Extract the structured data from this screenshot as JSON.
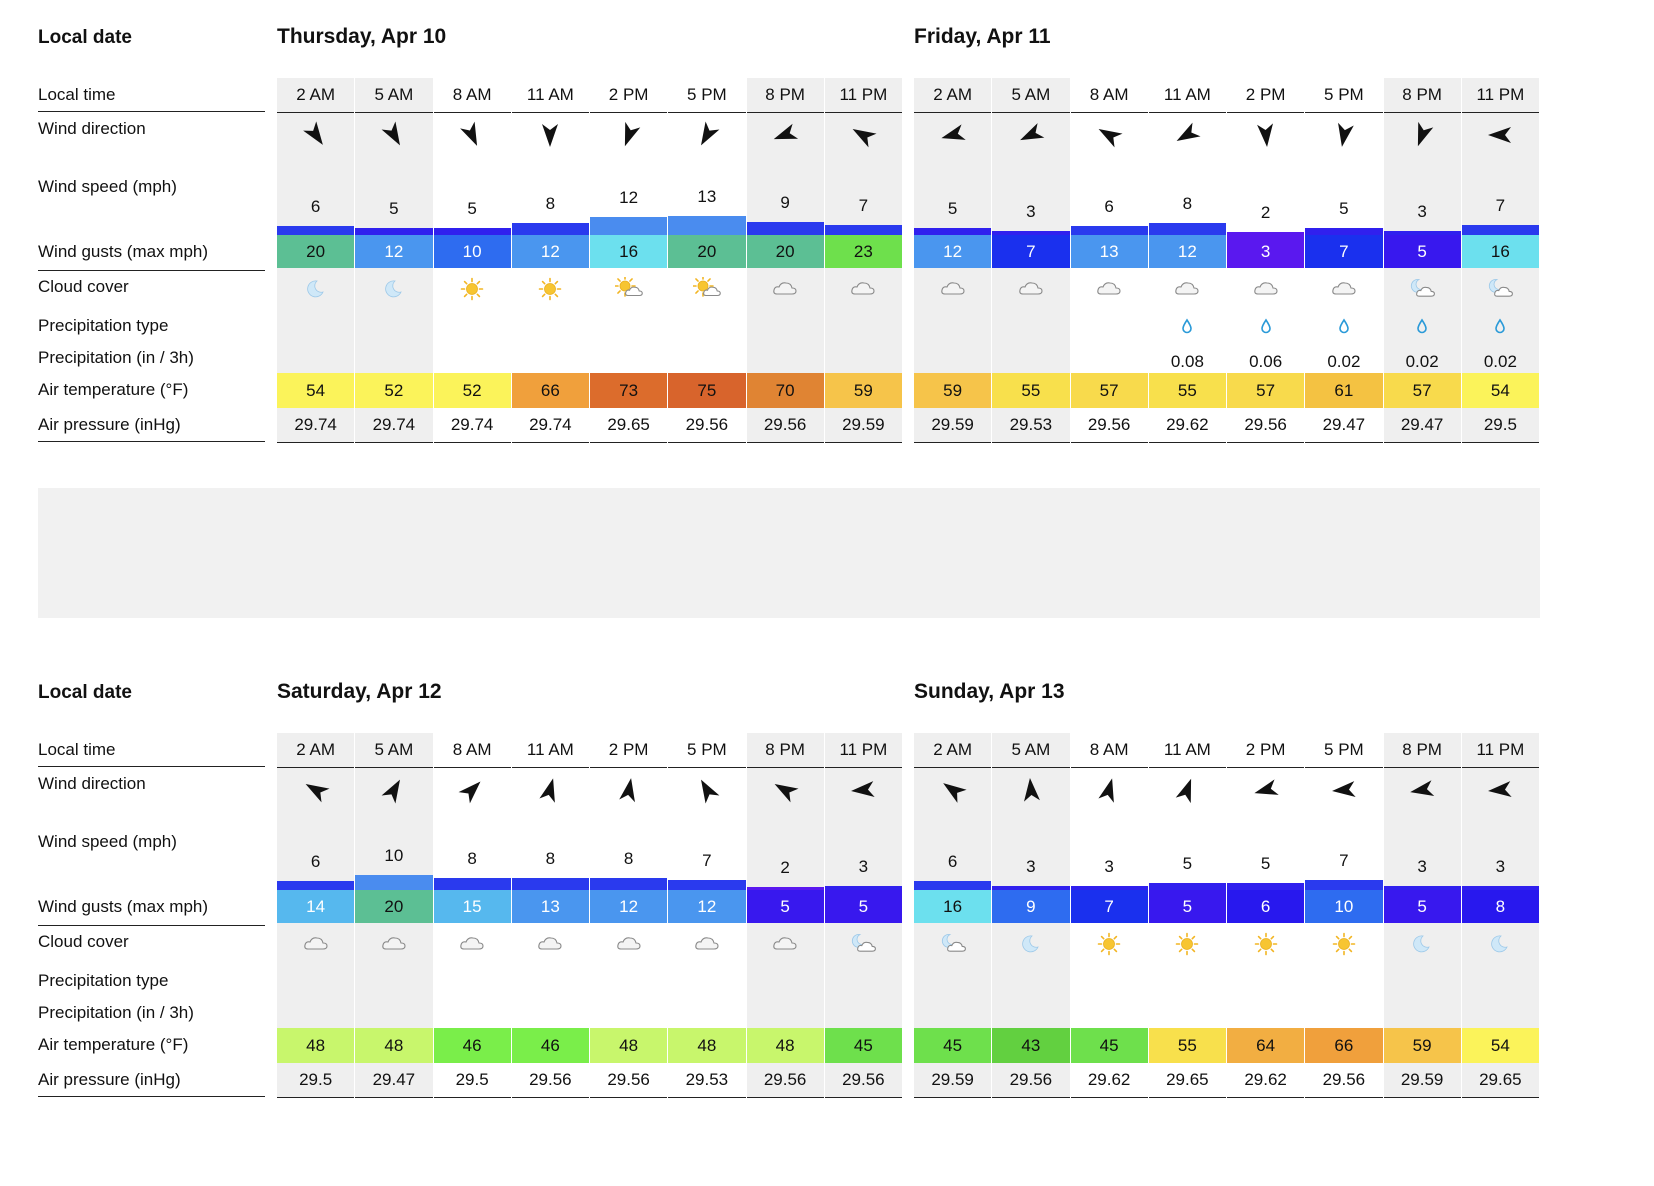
{
  "labels": {
    "local_date": "Local date",
    "local_time": "Local time",
    "wind_direction": "Wind direction",
    "wind_speed": "Wind speed (mph)",
    "wind_gusts": "Wind gusts (max mph)",
    "cloud_cover": "Cloud cover",
    "precip_type": "Precipitation type",
    "precip_amount": "Precipitation (in / 3h)",
    "air_temp": "Air temperature (°F)",
    "air_pressure": "Air pressure (inHg)"
  },
  "days": [
    {
      "title": "Thursday, Apr 10",
      "hours": [
        {
          "time": "2 AM",
          "dir": 145,
          "speed": "6",
          "gust": "20",
          "gust_color": "#5cbf94",
          "cloud": "moon",
          "precip": "",
          "temp": "54",
          "temp_color": "#fbf35a",
          "pressure": "29.74",
          "shade": true
        },
        {
          "time": "5 AM",
          "dir": 150,
          "speed": "5",
          "gust": "12",
          "gust_color": "#4a96ef",
          "cloud": "moon",
          "precip": "",
          "temp": "52",
          "temp_color": "#fbf35a",
          "pressure": "29.74",
          "shade": true
        },
        {
          "time": "8 AM",
          "dir": 155,
          "speed": "5",
          "gust": "10",
          "gust_color": "#2e6cf0",
          "cloud": "sun",
          "precip": "",
          "temp": "52",
          "temp_color": "#fbf35a",
          "pressure": "29.74",
          "shade": false
        },
        {
          "time": "11 AM",
          "dir": 180,
          "speed": "8",
          "gust": "12",
          "gust_color": "#4a96ef",
          "cloud": "sun",
          "precip": "",
          "temp": "66",
          "temp_color": "#f0a03c",
          "pressure": "29.74",
          "shade": false
        },
        {
          "time": "2 PM",
          "dir": 200,
          "speed": "12",
          "gust": "16",
          "gust_color": "#6ce0ee",
          "cloud": "sun-cloud",
          "precip": "",
          "temp": "73",
          "temp_color": "#dc6c2c",
          "pressure": "29.65",
          "shade": false
        },
        {
          "time": "5 PM",
          "dir": 210,
          "speed": "13",
          "gust": "20",
          "gust_color": "#5cbf94",
          "cloud": "sun-cloud",
          "precip": "",
          "temp": "75",
          "temp_color": "#d8642c",
          "pressure": "29.56",
          "shade": false
        },
        {
          "time": "8 PM",
          "dir": 250,
          "speed": "9",
          "gust": "20",
          "gust_color": "#5cbf94",
          "cloud": "cloud",
          "precip": "",
          "temp": "70",
          "temp_color": "#e08433",
          "pressure": "29.56",
          "shade": true
        },
        {
          "time": "11 PM",
          "dir": 300,
          "speed": "7",
          "gust": "23",
          "gust_color": "#6ee04c",
          "cloud": "cloud",
          "precip": "",
          "temp": "59",
          "temp_color": "#f6c44a",
          "pressure": "29.59",
          "shade": true
        }
      ]
    },
    {
      "title": "Friday, Apr 11",
      "hours": [
        {
          "time": "2 AM",
          "dir": 255,
          "speed": "5",
          "gust": "12",
          "gust_color": "#4a96ef",
          "cloud": "cloud",
          "precip": "",
          "temp": "59",
          "temp_color": "#f6c44a",
          "pressure": "29.59",
          "shade": true
        },
        {
          "time": "5 AM",
          "dir": 245,
          "speed": "3",
          "gust": "7",
          "gust_color": "#1a30ee",
          "cloud": "cloud",
          "precip": "",
          "temp": "55",
          "temp_color": "#f8e04c",
          "pressure": "29.53",
          "shade": true
        },
        {
          "time": "8 AM",
          "dir": 300,
          "speed": "6",
          "gust": "13",
          "gust_color": "#4a96ef",
          "cloud": "cloud",
          "precip": "",
          "temp": "57",
          "temp_color": "#f8da4c",
          "pressure": "29.56",
          "shade": false
        },
        {
          "time": "11 AM",
          "dir": 240,
          "speed": "8",
          "gust": "12",
          "gust_color": "#4a96ef",
          "cloud": "cloud",
          "precip": "0.08",
          "temp": "55",
          "temp_color": "#f8e04c",
          "pressure": "29.62",
          "shade": false
        },
        {
          "time": "2 PM",
          "dir": 175,
          "speed": "2",
          "gust": "3",
          "gust_color": "#5a18ef",
          "cloud": "cloud",
          "precip": "0.06",
          "temp": "57",
          "temp_color": "#f8da4c",
          "pressure": "29.56",
          "shade": false
        },
        {
          "time": "5 PM",
          "dir": 190,
          "speed": "5",
          "gust": "7",
          "gust_color": "#1a30ee",
          "cloud": "cloud",
          "precip": "0.02",
          "temp": "61",
          "temp_color": "#f4c242",
          "pressure": "29.47",
          "shade": false
        },
        {
          "time": "8 PM",
          "dir": 200,
          "speed": "3",
          "gust": "5",
          "gust_color": "#3818ee",
          "cloud": "moon-cloud",
          "precip": "0.02",
          "temp": "57",
          "temp_color": "#f8da4c",
          "pressure": "29.47",
          "shade": true
        },
        {
          "time": "11 PM",
          "dir": 270,
          "speed": "7",
          "gust": "16",
          "gust_color": "#6ce0ee",
          "cloud": "moon-cloud",
          "precip": "0.02",
          "temp": "54",
          "temp_color": "#fbf35a",
          "pressure": "29.5",
          "shade": true
        }
      ]
    },
    {
      "title": "Saturday, Apr 12",
      "hours": [
        {
          "time": "2 AM",
          "dir": 300,
          "speed": "6",
          "gust": "14",
          "gust_color": "#56b8ee",
          "cloud": "cloud",
          "precip": "",
          "temp": "48",
          "temp_color": "#c8f66c",
          "pressure": "29.5",
          "shade": true
        },
        {
          "time": "5 AM",
          "dir": 30,
          "speed": "10",
          "gust": "20",
          "gust_color": "#5cbf94",
          "cloud": "cloud",
          "precip": "",
          "temp": "48",
          "temp_color": "#c8f66c",
          "pressure": "29.47",
          "shade": true
        },
        {
          "time": "8 AM",
          "dir": 45,
          "speed": "8",
          "gust": "15",
          "gust_color": "#56b8ee",
          "cloud": "cloud",
          "precip": "",
          "temp": "46",
          "temp_color": "#7aee4a",
          "pressure": "29.5",
          "shade": false
        },
        {
          "time": "11 AM",
          "dir": 15,
          "speed": "8",
          "gust": "13",
          "gust_color": "#4a96ef",
          "cloud": "cloud",
          "precip": "",
          "temp": "46",
          "temp_color": "#7aee4a",
          "pressure": "29.56",
          "shade": false
        },
        {
          "time": "2 PM",
          "dir": 10,
          "speed": "8",
          "gust": "12",
          "gust_color": "#4a96ef",
          "cloud": "cloud",
          "precip": "",
          "temp": "48",
          "temp_color": "#c8f66c",
          "pressure": "29.56",
          "shade": false
        },
        {
          "time": "5 PM",
          "dir": 330,
          "speed": "7",
          "gust": "12",
          "gust_color": "#4a96ef",
          "cloud": "cloud",
          "precip": "",
          "temp": "48",
          "temp_color": "#c8f66c",
          "pressure": "29.53",
          "shade": false
        },
        {
          "time": "8 PM",
          "dir": 300,
          "speed": "2",
          "gust": "5",
          "gust_color": "#3818ee",
          "cloud": "cloud",
          "precip": "",
          "temp": "48",
          "temp_color": "#c8f66c",
          "pressure": "29.56",
          "shade": true
        },
        {
          "time": "11 PM",
          "dir": 265,
          "speed": "3",
          "gust": "5",
          "gust_color": "#3818ee",
          "cloud": "moon-cloud",
          "precip": "",
          "temp": "45",
          "temp_color": "#6ee04c",
          "pressure": "29.56",
          "shade": true
        }
      ]
    },
    {
      "title": "Sunday, Apr 13",
      "hours": [
        {
          "time": "2 AM",
          "dir": 305,
          "speed": "6",
          "gust": "16",
          "gust_color": "#6ce0ee",
          "cloud": "moon-cloud",
          "precip": "",
          "temp": "45",
          "temp_color": "#6ee04c",
          "pressure": "29.59",
          "shade": true
        },
        {
          "time": "5 AM",
          "dir": 355,
          "speed": "3",
          "gust": "9",
          "gust_color": "#2e6cf0",
          "cloud": "moon",
          "precip": "",
          "temp": "43",
          "temp_color": "#62d040",
          "pressure": "29.56",
          "shade": true
        },
        {
          "time": "8 AM",
          "dir": 15,
          "speed": "3",
          "gust": "7",
          "gust_color": "#1a30ee",
          "cloud": "sun",
          "precip": "",
          "temp": "45",
          "temp_color": "#6ee04c",
          "pressure": "29.62",
          "shade": false
        },
        {
          "time": "11 AM",
          "dir": 20,
          "speed": "5",
          "gust": "5",
          "gust_color": "#3818ee",
          "cloud": "sun",
          "precip": "",
          "temp": "55",
          "temp_color": "#f8e04c",
          "pressure": "29.65",
          "shade": false
        },
        {
          "time": "2 PM",
          "dir": 255,
          "speed": "5",
          "gust": "6",
          "gust_color": "#2818ee",
          "cloud": "sun",
          "precip": "",
          "temp": "64",
          "temp_color": "#f2ae42",
          "pressure": "29.62",
          "shade": false
        },
        {
          "time": "5 PM",
          "dir": 265,
          "speed": "7",
          "gust": "10",
          "gust_color": "#2e6cf0",
          "cloud": "sun",
          "precip": "",
          "temp": "66",
          "temp_color": "#f0a03c",
          "pressure": "29.56",
          "shade": false
        },
        {
          "time": "8 PM",
          "dir": 260,
          "speed": "3",
          "gust": "5",
          "gust_color": "#3818ee",
          "cloud": "moon",
          "precip": "",
          "temp": "59",
          "temp_color": "#f6c44a",
          "pressure": "29.59",
          "shade": true
        },
        {
          "time": "11 PM",
          "dir": 265,
          "speed": "3",
          "gust": "8",
          "gust_color": "#2818ee",
          "cloud": "moon",
          "precip": "",
          "temp": "54",
          "temp_color": "#fbf35a",
          "pressure": "29.65",
          "shade": true
        }
      ]
    }
  ]
}
